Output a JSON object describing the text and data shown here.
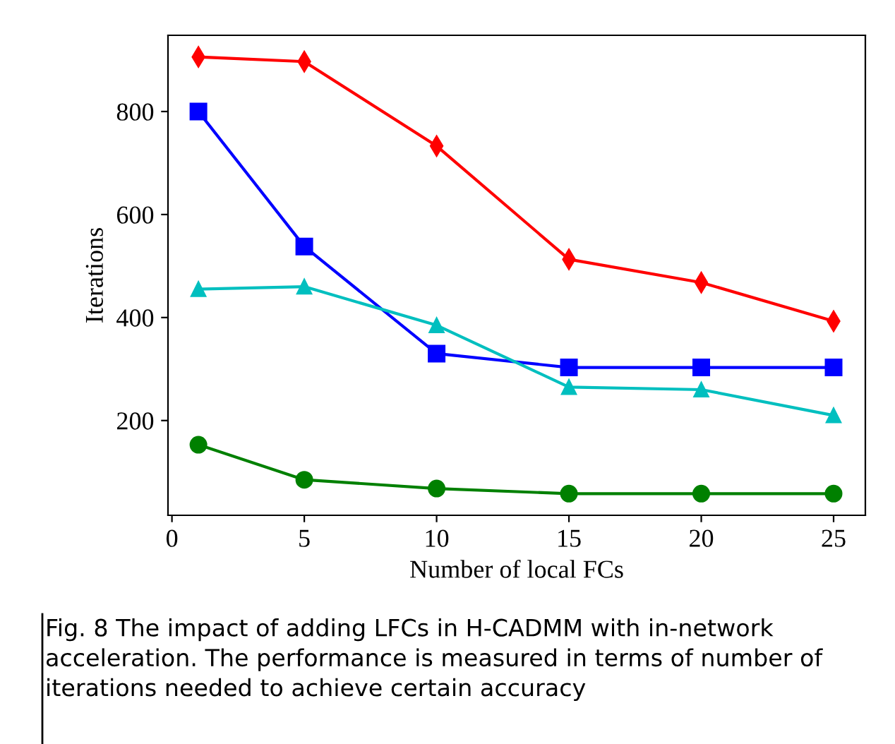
{
  "chart_data": {
    "type": "line",
    "xlabel": "Number of local FCs",
    "ylabel": "Iterations",
    "x": [
      1,
      5,
      10,
      15,
      20,
      25
    ],
    "series": [
      {
        "color": "#ff0000",
        "marker": "diamond",
        "values": [
          906,
          897,
          733,
          513,
          468,
          393
        ]
      },
      {
        "color": "#0000ff",
        "marker": "square",
        "values": [
          800,
          538,
          330,
          303,
          303,
          303
        ]
      },
      {
        "color": "#00bfbf",
        "marker": "triangle",
        "values": [
          455,
          460,
          385,
          265,
          260,
          210
        ]
      },
      {
        "color": "#008000",
        "marker": "circle",
        "values": [
          153,
          85,
          68,
          58,
          58,
          58
        ]
      }
    ],
    "xlim": [
      -0.15,
      26.2
    ],
    "ylim": [
      16,
      948
    ],
    "xticks": [
      0,
      5,
      10,
      15,
      20,
      25
    ],
    "yticks": [
      200,
      400,
      600,
      800
    ],
    "grid": false,
    "line_style": "solid",
    "annotations": [
      "Fig. 8 The impact of adding LFCs in H-CADMM with in-network acceleration. The performance is measured in terms of number of iterations needed to achieve certain accuracy"
    ]
  }
}
